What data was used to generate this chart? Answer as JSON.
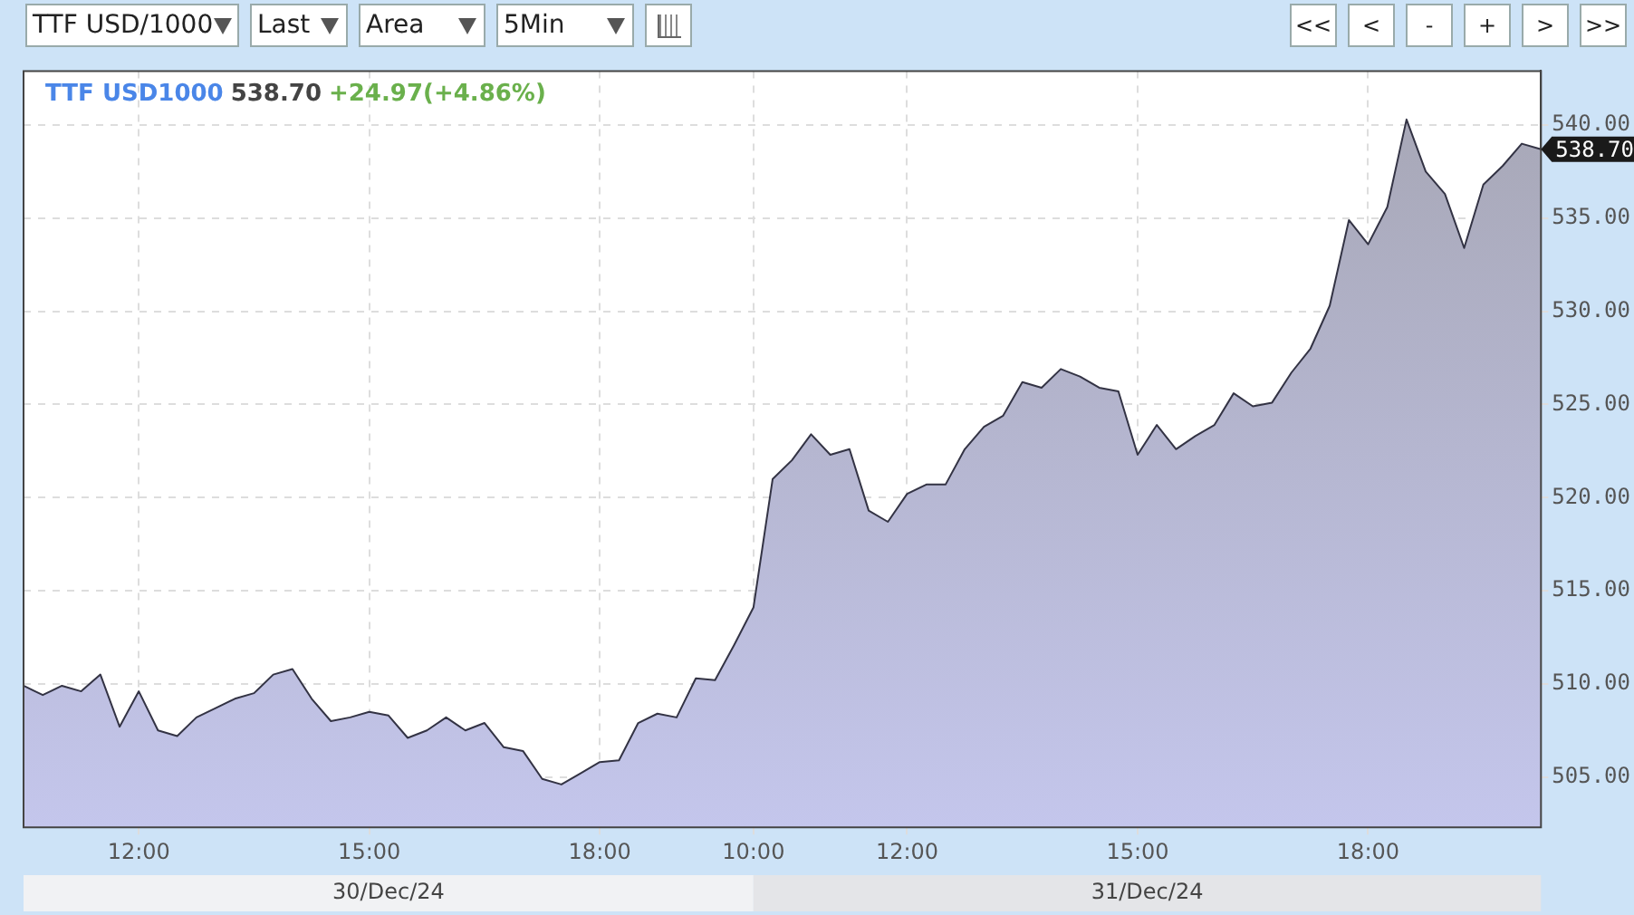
{
  "chart_data": {
    "type": "area",
    "title": "TTF USD1000",
    "categories": [
      null,
      null,
      null,
      null,
      null,
      null,
      "12:00",
      null,
      null,
      null,
      null,
      null,
      null,
      null,
      null,
      null,
      null,
      null,
      "15:00",
      null,
      null,
      null,
      null,
      null,
      null,
      null,
      null,
      null,
      null,
      null,
      "18:00",
      null,
      null,
      null,
      null,
      null,
      null,
      null,
      "10:00",
      null,
      null,
      null,
      null,
      null,
      null,
      null,
      "12:00",
      null,
      null,
      null,
      null,
      null,
      null,
      null,
      null,
      null,
      null,
      null,
      "15:00",
      null,
      null,
      null,
      null,
      null,
      null,
      null,
      null,
      null,
      null,
      null,
      "18:00",
      null,
      null,
      null,
      null,
      null,
      null,
      null,
      null,
      null
    ],
    "series": [
      {
        "color": "#c4c6ec",
        "values": [
          509.9,
          509.4,
          509.9,
          509.6,
          510.5,
          507.7,
          509.6,
          507.5,
          507.2,
          508.2,
          508.7,
          509.2,
          509.5,
          510.5,
          510.8,
          509.2,
          508.0,
          508.2,
          508.5,
          508.3,
          507.1,
          507.5,
          508.2,
          507.5,
          507.9,
          506.6,
          506.4,
          504.9,
          504.6,
          505.2,
          505.8,
          505.9,
          507.9,
          508.4,
          508.2,
          510.3,
          510.2,
          512.1,
          514.1,
          521.0,
          522.0,
          523.4,
          522.3,
          522.6,
          519.3,
          518.7,
          520.2,
          520.7,
          520.7,
          522.6,
          523.8,
          524.4,
          526.2,
          525.9,
          526.9,
          526.5,
          525.9,
          525.7,
          522.3,
          523.9,
          522.6,
          523.3,
          523.9,
          525.6,
          524.9,
          525.1,
          526.7,
          528.0,
          530.3,
          534.9,
          533.6,
          535.6,
          540.3,
          537.5,
          536.3,
          533.4,
          536.8,
          537.8,
          539.0,
          538.7
        ]
      }
    ],
    "ylim": [
      502.3,
      542.9
    ],
    "yticks": [
      {
        "value": 505,
        "label": "505.00"
      },
      {
        "value": 510,
        "label": "510.00"
      },
      {
        "value": 515,
        "label": "515.00"
      },
      {
        "value": 520,
        "label": "520.00"
      },
      {
        "value": 525,
        "label": "525.00"
      },
      {
        "value": 530,
        "label": "530.00"
      },
      {
        "value": 535,
        "label": "535.00"
      },
      {
        "value": 540,
        "label": "540.00"
      }
    ],
    "grid": true,
    "legend": false,
    "annotations": [
      "538.70",
      "+24.97(+4.86%)",
      "538.70",
      "30/Dec/24",
      "31/Dec/24",
      "TTF USD/1000",
      "Last",
      "Area",
      "5Min",
      "<<",
      "<",
      "-",
      "+",
      ">",
      ">>"
    ]
  }
}
